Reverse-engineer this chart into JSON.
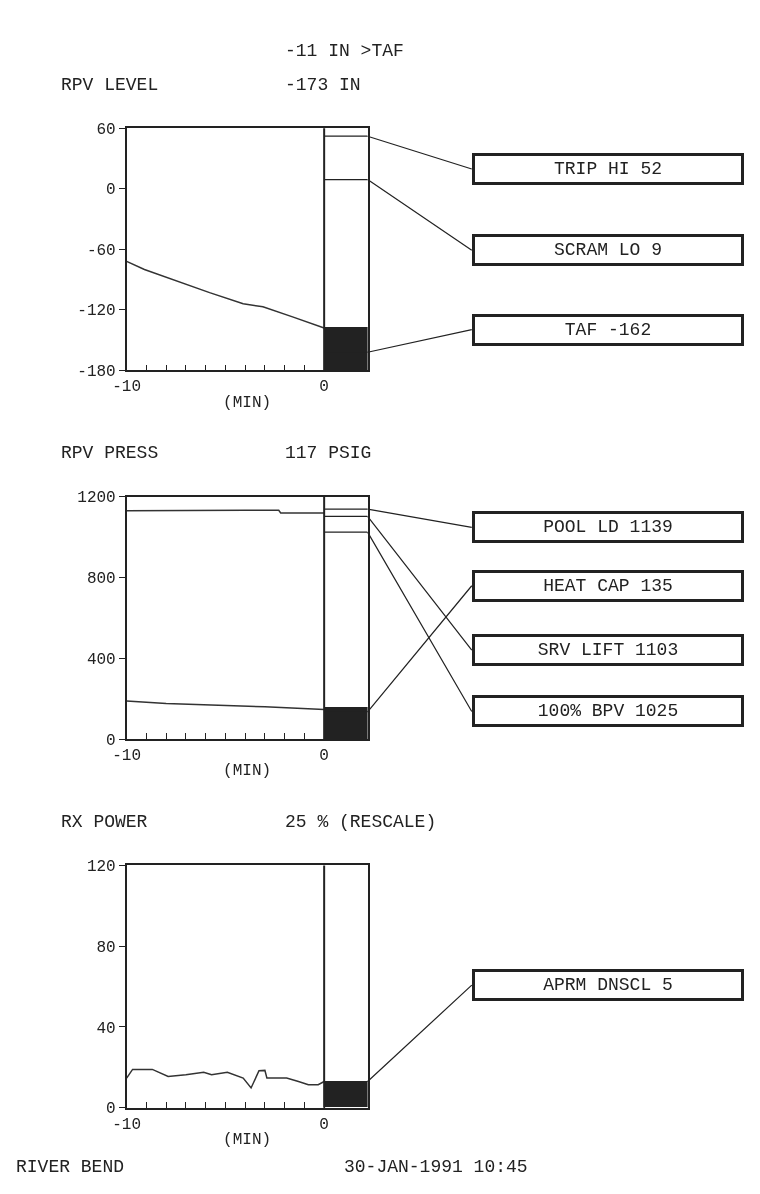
{
  "chart_data": [
    {
      "type": "line",
      "title": "RPV LEVEL",
      "xlabel": "(MIN)",
      "xlim": [
        -10,
        2.2
      ],
      "ylim": [
        -180,
        60
      ],
      "xticks": [
        -10,
        {
          "value": -9,
          "label": null
        },
        {
          "value": -8,
          "label": null
        },
        {
          "value": -7,
          "label": null
        },
        {
          "value": -6,
          "label": null
        },
        {
          "value": -5,
          "label": null
        },
        {
          "value": -4,
          "label": null
        },
        {
          "value": -3,
          "label": null
        },
        {
          "value": -2,
          "label": null
        },
        {
          "value": -1,
          "label": null
        },
        0
      ],
      "yticks": [
        -180,
        -120,
        -60,
        0,
        60
      ],
      "ref_lines": [
        {
          "axis": "x",
          "value": 0,
          "color": "#222222"
        },
        {
          "axis": "y",
          "value": 52
        },
        {
          "axis": "y",
          "value": 9
        },
        {
          "axis": "y",
          "value": -162
        }
      ],
      "series": [
        {
          "color": "#333333",
          "x": [
            -10,
            -9.1,
            -5.8,
            -4.1,
            -3.1,
            -1.6,
            0
          ],
          "values": [
            -72,
            -80,
            -103,
            -114,
            -117,
            -127,
            -138
          ]
        },
        {
          "type": "bar",
          "color": "#222222",
          "x": [
            1.1
          ],
          "values": [
            43
          ],
          "base": [
            -180
          ]
        }
      ],
      "subtitle": "-11 IN >TAF\n-173 IN",
      "annotations": [
        "TRIP HI 52",
        "SCRAM LO 9",
        "TAF -162"
      ]
    },
    {
      "type": "line",
      "title": "RPV PRESS",
      "xlabel": "(MIN)",
      "xlim": [
        -10,
        2.2
      ],
      "ylim": [
        0,
        1200
      ],
      "xticks": [
        -10,
        {
          "value": -9,
          "label": null
        },
        {
          "value": -8,
          "label": null
        },
        {
          "value": -7,
          "label": null
        },
        {
          "value": -6,
          "label": null
        },
        {
          "value": -5,
          "label": null
        },
        {
          "value": -4,
          "label": null
        },
        {
          "value": -3,
          "label": null
        },
        {
          "value": -2,
          "label": null
        },
        {
          "value": -1,
          "label": null
        },
        0
      ],
      "yticks": [
        0,
        400,
        800,
        1200
      ],
      "ref_lines": [
        {
          "axis": "x",
          "value": 0,
          "color": "#222222"
        },
        {
          "axis": "y",
          "value": 1139
        },
        {
          "axis": "y",
          "value": 135
        },
        {
          "axis": "y",
          "value": 1103
        },
        {
          "axis": "y",
          "value": 1025
        }
      ],
      "series": [
        {
          "color": "#333333",
          "x": [
            -10,
            -4,
            -2.3,
            -2.2,
            0
          ],
          "values": [
            1131,
            1133,
            1133,
            1120,
            1120
          ]
        },
        {
          "color": "#333333",
          "x": [
            -10,
            -8,
            -3,
            0
          ],
          "values": [
            189,
            176,
            160,
            147
          ]
        },
        {
          "type": "bar",
          "color": "#222222",
          "x": [
            1.1
          ],
          "values": [
            160
          ]
        }
      ],
      "subtitle": "117 PSIG",
      "annotations": [
        "POOL LD 1139",
        "HEAT CAP 135",
        "SRV LIFT 1103",
        "100% BPV 1025"
      ]
    },
    {
      "type": "line",
      "title": "RX POWER",
      "xlabel": "(MIN)",
      "xlim": [
        -10,
        2.2
      ],
      "ylim": [
        0,
        120
      ],
      "xticks": [
        -10,
        {
          "value": -9,
          "label": null
        },
        {
          "value": -8,
          "label": null
        },
        {
          "value": -7,
          "label": null
        },
        {
          "value": -6,
          "label": null
        },
        {
          "value": -5,
          "label": null
        },
        {
          "value": -4,
          "label": null
        },
        {
          "value": -3,
          "label": null
        },
        {
          "value": -2,
          "label": null
        },
        {
          "value": -1,
          "label": null
        },
        0
      ],
      "yticks": [
        0,
        40,
        80,
        120
      ],
      "ref_lines": [
        {
          "axis": "x",
          "value": 0,
          "color": "#222222"
        },
        {
          "axis": "y",
          "value": 13
        }
      ],
      "series": [
        {
          "color": "#333333",
          "x": [
            -10,
            -9.7,
            -8.7,
            -7.9,
            -7.0,
            -6.1,
            -5.7,
            -4.9,
            -4.1,
            -3.7,
            -3.3,
            -3.0,
            -2.9,
            -1.9,
            -1.3,
            -0.8,
            -0.3,
            0
          ],
          "values": [
            14.7,
            19,
            19,
            15.5,
            16.3,
            17.6,
            16.3,
            17.6,
            14.7,
            9.8,
            18.3,
            18.5,
            14.7,
            14.7,
            13,
            11.4,
            11.4,
            13
          ]
        },
        {
          "type": "bar",
          "color": "#222222",
          "x": [
            1.1
          ],
          "values": [
            13
          ]
        }
      ],
      "subtitle": "25 % (RESCALE)",
      "annotations": [
        "APRM DNSCL 5",
        "RIVER BEND",
        "30-JAN-1991 10:45"
      ]
    }
  ]
}
